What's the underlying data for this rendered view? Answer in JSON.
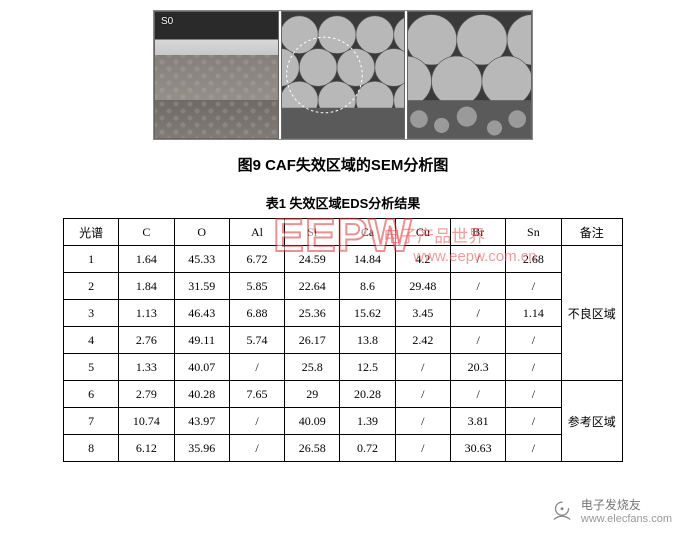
{
  "figure": {
    "panel_tags": [
      "S0",
      "",
      ""
    ],
    "caption": "图9  CAF失效区域的SEM分析图"
  },
  "watermark": {
    "main": "EEPW",
    "sub": "电子产品世界",
    "url": "www.eepw.com.cn"
  },
  "table": {
    "caption": "表1 失效区域EDS分析结果",
    "headers": [
      "光谱",
      "C",
      "O",
      "Al",
      "Si",
      "Ca",
      "Cu",
      "Br",
      "Sn",
      "备注"
    ],
    "rows": [
      {
        "spec": "1",
        "vals": [
          "1.64",
          "45.33",
          "6.72",
          "24.59",
          "14.84",
          "4.2",
          "/",
          "2.68"
        ],
        "group": 0
      },
      {
        "spec": "2",
        "vals": [
          "1.84",
          "31.59",
          "5.85",
          "22.64",
          "8.6",
          "29.48",
          "/",
          "/"
        ],
        "group": 0
      },
      {
        "spec": "3",
        "vals": [
          "1.13",
          "46.43",
          "6.88",
          "25.36",
          "15.62",
          "3.45",
          "/",
          "1.14"
        ],
        "group": 0
      },
      {
        "spec": "4",
        "vals": [
          "2.76",
          "49.11",
          "5.74",
          "26.17",
          "13.8",
          "2.42",
          "/",
          "/"
        ],
        "group": 0
      },
      {
        "spec": "5",
        "vals": [
          "1.33",
          "40.07",
          "/",
          "25.8",
          "12.5",
          "/",
          "20.3",
          "/"
        ],
        "group": 0
      },
      {
        "spec": "6",
        "vals": [
          "2.79",
          "40.28",
          "7.65",
          "29",
          "20.28",
          "/",
          "/",
          "/"
        ],
        "group": 1
      },
      {
        "spec": "7",
        "vals": [
          "10.74",
          "43.97",
          "/",
          "40.09",
          "1.39",
          "/",
          "3.81",
          "/"
        ],
        "group": 1
      },
      {
        "spec": "8",
        "vals": [
          "6.12",
          "35.96",
          "/",
          "26.58",
          "0.72",
          "/",
          "30.63",
          "/"
        ],
        "group": 1
      }
    ],
    "groups": [
      {
        "label": "不良区域",
        "rowspan": 5
      },
      {
        "label": "参考区域",
        "rowspan": 3
      }
    ]
  },
  "footer": {
    "brand_cn": "电子发烧友",
    "brand_url": "www.elecfans.com"
  },
  "style": {
    "table_border_color": "#000000",
    "watermark_color": "#d83a3a",
    "footer_color": "#888888",
    "background": "#ffffff"
  }
}
